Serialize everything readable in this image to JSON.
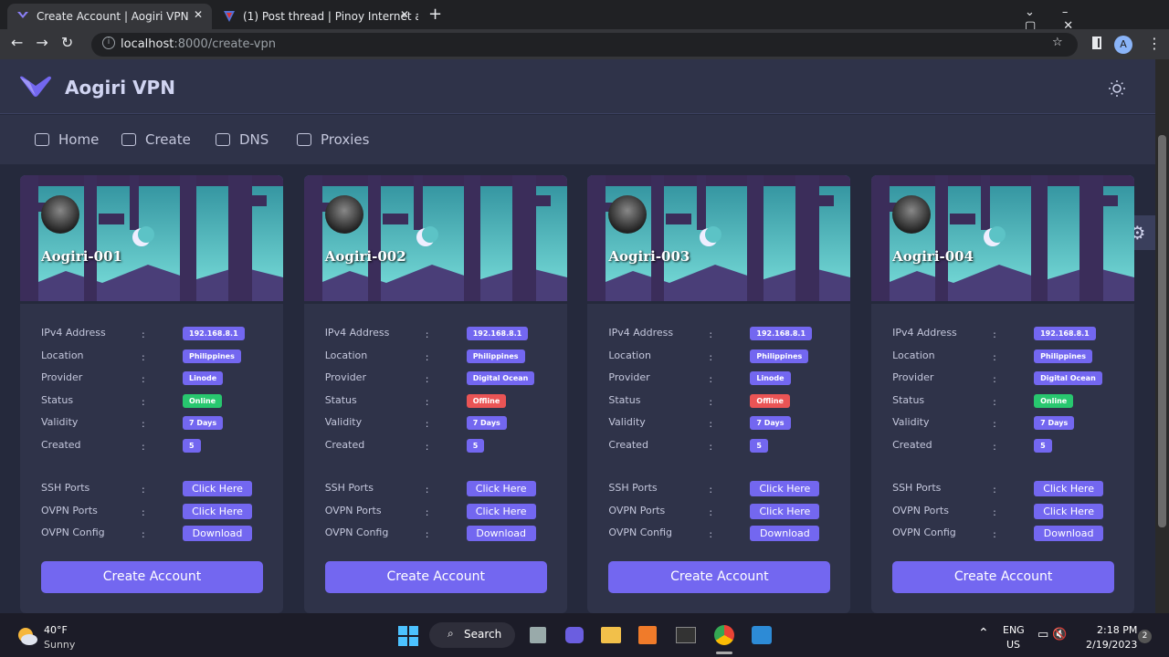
{
  "browser": {
    "tabs": [
      {
        "title": "Create Account | Aogiri VPN"
      },
      {
        "title": "(1) Post thread | Pinoy Internet an"
      }
    ],
    "url_host": "localhost",
    "url_path": ":8000/create-vpn",
    "profile": "A"
  },
  "app": {
    "brand": "Aogiri VPN",
    "nav": [
      "Home",
      "Create",
      "DNS",
      "Proxies"
    ]
  },
  "field_labels": [
    "IPv4 Address",
    "Location",
    "Provider",
    "Status",
    "Validity",
    "Created"
  ],
  "action_labels": [
    "SSH Ports",
    "OVPN Ports",
    "OVPN Config"
  ],
  "separator": ":",
  "actions": [
    "Click Here",
    "Click Here",
    "Download"
  ],
  "submit": "Create Account",
  "servers": [
    {
      "name": "Aogiri-001",
      "fields": [
        "192.168.8.1",
        "Philippines",
        "Linode",
        "Online",
        "7 Days",
        "5"
      ],
      "status_color": "#28c76f"
    },
    {
      "name": "Aogiri-002",
      "fields": [
        "192.168.8.1",
        "Philippines",
        "Digital Ocean",
        "Offline",
        "7 Days",
        "5"
      ],
      "status_color": "#ea5455"
    },
    {
      "name": "Aogiri-003",
      "fields": [
        "192.168.8.1",
        "Philippines",
        "Linode",
        "Offline",
        "7 Days",
        "5"
      ],
      "status_color": "#ea5455"
    },
    {
      "name": "Aogiri-004",
      "fields": [
        "192.168.8.1",
        "Philippines",
        "Digital Ocean",
        "Online",
        "7 Days",
        "5"
      ],
      "status_color": "#28c76f"
    }
  ],
  "taskbar": {
    "temperature": "40°F",
    "weather": "Sunny",
    "search": "Search",
    "lang": "ENG",
    "region": "US",
    "time": "2:18 PM",
    "date": "2/19/2023",
    "notifications": "2"
  }
}
